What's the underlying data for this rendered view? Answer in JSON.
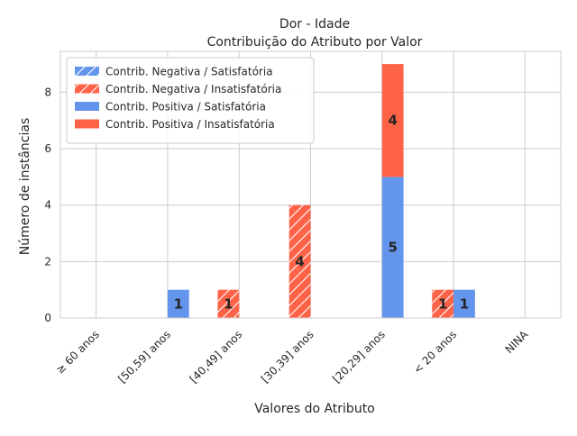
{
  "chart_data": {
    "type": "bar",
    "title": "Dor - Idade",
    "subtitle": "Contribuição do Atributo por Valor",
    "xlabel": "Valores do Atributo",
    "ylabel": "Número de instâncias",
    "categories": [
      "≥ 60 anos",
      "[50,59] anos",
      "[40,49] anos",
      "[30,39] anos",
      "[20,29] anos",
      "< 20 anos",
      "NINA"
    ],
    "ylim": [
      0,
      9.45
    ],
    "yticks": [
      0,
      2,
      4,
      6,
      8
    ],
    "grid": true,
    "legend_position": "top-left",
    "series": [
      {
        "name": "Contrib. Negativa / Satisfatória",
        "color": "#6495ED",
        "hatch": true,
        "group": "negative",
        "values": [
          0,
          0,
          0,
          0,
          0,
          0,
          0
        ]
      },
      {
        "name": "Contrib. Negativa / Insatisfatória",
        "color": "#FF6347",
        "hatch": true,
        "group": "negative",
        "values": [
          0,
          0,
          1,
          4,
          0,
          1,
          0
        ]
      },
      {
        "name": "Contrib. Positiva / Satisfatória",
        "color": "#6495ED",
        "hatch": false,
        "group": "positive",
        "values": [
          0,
          1,
          0,
          0,
          5,
          1,
          0
        ]
      },
      {
        "name": "Contrib. Positiva / Insatisfatória",
        "color": "#FF6347",
        "hatch": false,
        "group": "positive",
        "values": [
          0,
          0,
          0,
          0,
          4,
          0,
          0
        ]
      }
    ],
    "data_labels": [
      {
        "category": "[50,59] anos",
        "series": "Contrib. Positiva / Satisfatória",
        "text": "1"
      },
      {
        "category": "[40,49] anos",
        "series": "Contrib. Negativa / Insatisfatória",
        "text": "1"
      },
      {
        "category": "[30,39] anos",
        "series": "Contrib. Negativa / Insatisfatória",
        "text": "4"
      },
      {
        "category": "[20,29] anos",
        "series": "Contrib. Positiva / Satisfatória",
        "text": "5"
      },
      {
        "category": "[20,29] anos",
        "series": "Contrib. Positiva / Insatisfatória",
        "text": "4"
      },
      {
        "category": "< 20 anos",
        "series": "Contrib. Negativa / Insatisfatória",
        "text": "1"
      },
      {
        "category": "< 20 anos",
        "series": "Contrib. Positiva / Satisfatória",
        "text": "1"
      }
    ]
  }
}
